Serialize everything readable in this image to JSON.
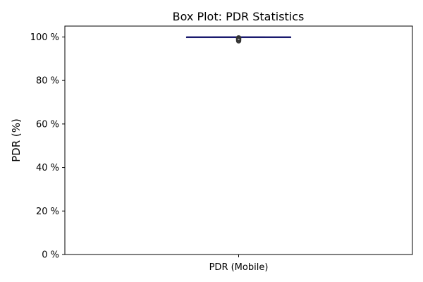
{
  "chart_data": {
    "type": "box",
    "title": "Box Plot: PDR Statistics",
    "xlabel": "",
    "ylabel": "PDR (%)",
    "ylim": [
      0,
      105
    ],
    "y_ticks": [
      0,
      20,
      40,
      60,
      80,
      100
    ],
    "y_tick_labels": [
      "0 %",
      "20 %",
      "40 %",
      "60 %",
      "80 %",
      "100 %"
    ],
    "categories": [
      "PDR (Mobile)"
    ],
    "boxes": [
      {
        "category": "PDR (Mobile)",
        "whisker_low": 99.8,
        "q1": 99.9,
        "median": 100,
        "q3": 100,
        "whisker_high": 100,
        "outliers": [
          99.6,
          99.4,
          99.2,
          99.0,
          98.8,
          98.5,
          98.2
        ]
      }
    ],
    "grid": false,
    "legend": "none",
    "colors": {
      "box_edge": "#1a1a6e",
      "median": "#1a1a6e",
      "whisker": "#1a1a6e",
      "outlier_edge": "#333333",
      "axes": "#000000"
    }
  }
}
